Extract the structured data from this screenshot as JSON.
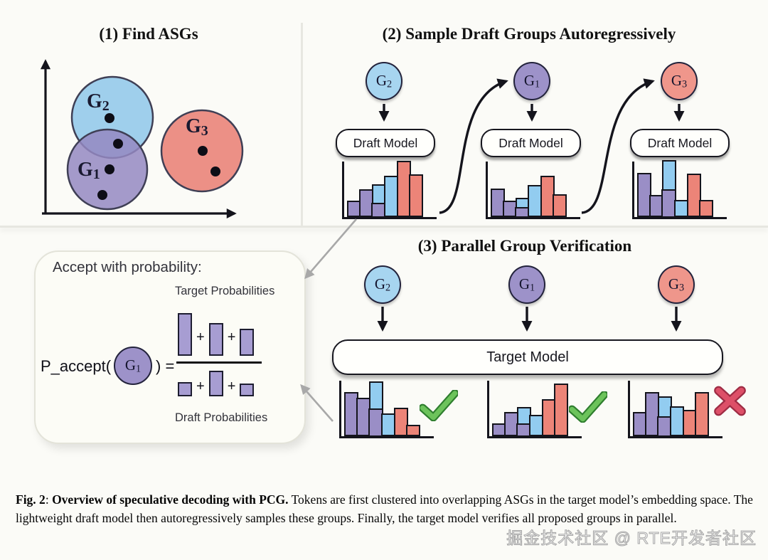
{
  "panel1": {
    "title": "(1) Find ASGs",
    "groups": [
      {
        "g": "G",
        "n": "2"
      },
      {
        "g": "G",
        "n": "1"
      },
      {
        "g": "G",
        "n": "3"
      }
    ]
  },
  "panel2": {
    "title": "(2) Sample Draft Groups Autoregressively",
    "draft_box_label": "Draft Model",
    "columns": [
      {
        "g": "G",
        "n": "2"
      },
      {
        "g": "G",
        "n": "1"
      },
      {
        "g": "G",
        "n": "3"
      }
    ]
  },
  "panel3": {
    "title": "(3) Parallel Group Verification",
    "target_box_label": "Target Model",
    "columns": [
      {
        "g": "G",
        "n": "2"
      },
      {
        "g": "G",
        "n": "1"
      },
      {
        "g": "G",
        "n": "3"
      }
    ],
    "results": [
      "accept",
      "accept",
      "reject"
    ]
  },
  "formula": {
    "heading": "Accept with probability:",
    "numerator_label": "Target Probabilities",
    "denominator_label": "Draft Probabilities",
    "lhs": "P_accept(",
    "group": {
      "g": "G",
      "n": "1"
    },
    "rhs": ") =",
    "plus": "+"
  },
  "chart_data": {
    "type": "bar",
    "note": "hand-drawn mini probability histograms; bar segments listed bottom-to-top as [color, height-px]",
    "palette": {
      "purple": "#9a8ec6",
      "blue": "#92ccf0",
      "red": "#ec8478"
    },
    "draft_distributions": [
      [
        [
          [
            "purple",
            18
          ]
        ],
        [
          [
            "purple",
            34
          ]
        ],
        [
          [
            "purple",
            18
          ],
          [
            "blue",
            23
          ]
        ],
        [
          [
            "blue",
            53
          ]
        ],
        [
          [
            "red",
            74
          ]
        ],
        [
          [
            "red",
            55
          ]
        ]
      ],
      [
        [
          [
            "purple",
            35
          ]
        ],
        [
          [
            "purple",
            18
          ]
        ],
        [
          [
            "purple",
            12
          ],
          [
            "blue",
            10
          ]
        ],
        [
          [
            "blue",
            40
          ]
        ],
        [
          [
            "red",
            53
          ]
        ],
        [
          [
            "red",
            27
          ]
        ]
      ],
      [
        [
          [
            "purple",
            57
          ]
        ],
        [
          [
            "purple",
            26
          ]
        ],
        [
          [
            "purple",
            37
          ],
          [
            "blue",
            38
          ]
        ],
        [
          [
            "blue",
            19
          ]
        ],
        [
          [
            "red",
            56
          ]
        ],
        [
          [
            "red",
            19
          ]
        ]
      ]
    ],
    "verify_distributions": [
      [
        [
          [
            "purple",
            57
          ]
        ],
        [
          [
            "purple",
            49
          ]
        ],
        [
          [
            "purple",
            37
          ],
          [
            "blue",
            35
          ]
        ],
        [
          [
            "blue",
            27
          ]
        ],
        [
          [
            "red",
            35
          ]
        ],
        [
          [
            "red",
            11
          ]
        ]
      ],
      [
        [
          [
            "purple",
            13
          ]
        ],
        [
          [
            "purple",
            29
          ]
        ],
        [
          [
            "purple",
            16
          ],
          [
            "blue",
            20
          ]
        ],
        [
          [
            "blue",
            25
          ]
        ],
        [
          [
            "red",
            47
          ]
        ],
        [
          [
            "red",
            69
          ]
        ]
      ],
      [
        [
          [
            "purple",
            29
          ]
        ],
        [
          [
            "purple",
            57
          ]
        ],
        [
          [
            "purple",
            26
          ],
          [
            "blue",
            25
          ]
        ],
        [
          [
            "blue",
            37
          ]
        ],
        [
          [
            "red",
            32
          ]
        ],
        [
          [
            "red",
            57
          ]
        ]
      ]
    ],
    "formula_bars": {
      "numerator": [
        60,
        46,
        38
      ],
      "denominator": [
        20,
        36,
        18
      ]
    },
    "scatter": {
      "clusters": [
        "G2",
        "G1",
        "G3"
      ],
      "points_per_cluster": [
        2,
        2,
        2
      ],
      "overlap": "G1 overlaps G2"
    }
  },
  "caption": {
    "fig": "Fig. 2",
    "colon": ": ",
    "bold": "Overview of speculative decoding with PCG.",
    "body": " Tokens are first clustered into overlapping ASGs in the target model’s embedding space. The lightweight draft model then autoregressively samples these groups. Finally, the target model verifies all proposed groups in parallel."
  },
  "watermark": "掘金技术社区 @ RTE开发者社区"
}
